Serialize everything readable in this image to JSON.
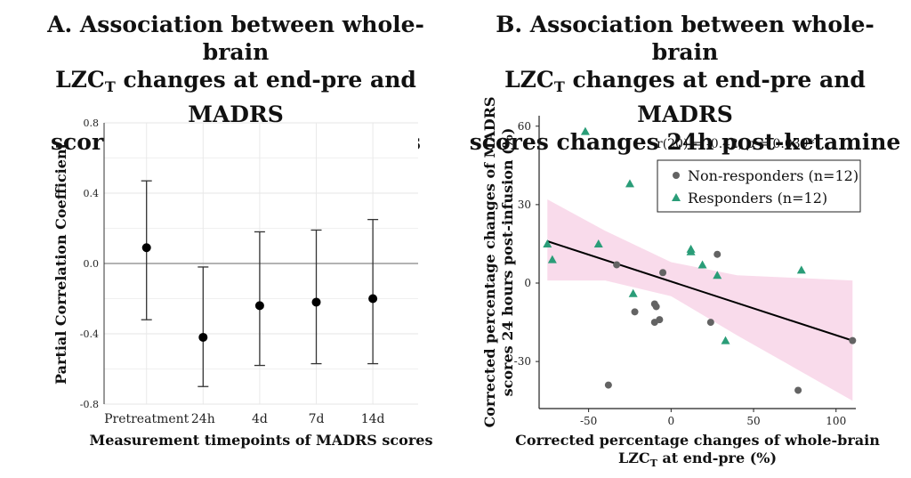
{
  "panel_a": {
    "title_line1": "A. Association between whole-brain",
    "title_line2_pre": "LZC",
    "title_line2_sub": "T",
    "title_line2_post": " changes at end-pre and MADRS",
    "title_line3": "scores at different timepoints"
  },
  "panel_b": {
    "title_line1": "B. Association between whole-brain",
    "title_line2_pre": "LZC",
    "title_line2_sub": "T",
    "title_line2_post": " changes at end-pre and MADRS",
    "title_line3": "scores changes 24h post-ketamine"
  },
  "chart_data": [
    {
      "type": "scatter",
      "title": "A. Association between whole-brain LZC_T changes at end-pre and MADRS scores at different timepoints",
      "xlabel": "Measurement timepoints of MADRS scores",
      "ylabel": "Partial Correlation Coefficient",
      "categories": [
        "Pretreatment",
        "24h",
        "4d",
        "7d",
        "14d"
      ],
      "values": [
        0.09,
        -0.42,
        -0.24,
        -0.22,
        -0.2
      ],
      "ci_lower": [
        -0.32,
        -0.7,
        -0.58,
        -0.57,
        -0.57
      ],
      "ci_upper": [
        0.47,
        -0.02,
        0.18,
        0.19,
        0.25
      ],
      "ylim": [
        -0.8,
        0.8
      ],
      "yticks": [
        "0.8",
        "0.4",
        "0.0",
        "-0.4",
        "-0.8"
      ],
      "grid": true,
      "reference_line": 0
    },
    {
      "type": "scatter",
      "title": "B. Association between whole-brain LZC_T changes at end-pre and MADRS scores changes 24h post-ketamine",
      "xlabel_line1": "Corrected percentage changes of whole-brain",
      "xlabel_line2_pre": "LZC",
      "xlabel_line2_sub": "T",
      "xlabel_line2_post": " at end-pre (%)",
      "ylabel_line1": "Corrected percentage changes of MADRS",
      "ylabel_line2": "scores 24 hours post-infusion (%)",
      "annotation_pre": "r(20) = -0.42, ",
      "annotation_p": "p",
      "annotation_post": " = 0.039*",
      "xlim": [
        -80,
        112
      ],
      "ylim": [
        -48,
        64
      ],
      "xticks": [
        "-50",
        "0",
        "50",
        "100"
      ],
      "yticks": [
        "60",
        "30",
        "0",
        "-30"
      ],
      "legend_position": "top-right",
      "series": [
        {
          "name": "Non-responders (n=12)",
          "color": "#636363",
          "marker": "circle",
          "points": [
            [
              -33,
              7
            ],
            [
              -22,
              -11
            ],
            [
              -10,
              -8
            ],
            [
              -9,
              -9
            ],
            [
              -10,
              -15
            ],
            [
              -7,
              -14
            ],
            [
              -5,
              4
            ],
            [
              -38,
              -39
            ],
            [
              24,
              -15
            ],
            [
              28,
              11
            ],
            [
              77,
              -41
            ],
            [
              110,
              -22
            ]
          ]
        },
        {
          "name": "Responders (n=12)",
          "color": "#2a9d78",
          "marker": "triangle",
          "points": [
            [
              -52,
              58
            ],
            [
              -25,
              38
            ],
            [
              -75,
              15
            ],
            [
              -72,
              9
            ],
            [
              -44,
              15
            ],
            [
              -23,
              -4
            ],
            [
              12,
              13
            ],
            [
              12,
              12
            ],
            [
              19,
              7
            ],
            [
              28,
              3
            ],
            [
              33,
              -22
            ],
            [
              79,
              5
            ]
          ]
        }
      ],
      "regression": {
        "line": [
          [
            -75,
            16
          ],
          [
            110,
            -22
          ]
        ],
        "band_upper": [
          [
            -75,
            32
          ],
          [
            -40,
            20
          ],
          [
            0,
            8
          ],
          [
            40,
            3
          ],
          [
            110,
            1
          ]
        ],
        "band_lower": [
          [
            -75,
            1
          ],
          [
            -40,
            1
          ],
          [
            0,
            -5
          ],
          [
            40,
            -20
          ],
          [
            110,
            -45
          ]
        ],
        "band_color": "#f8d7e9"
      }
    }
  ]
}
